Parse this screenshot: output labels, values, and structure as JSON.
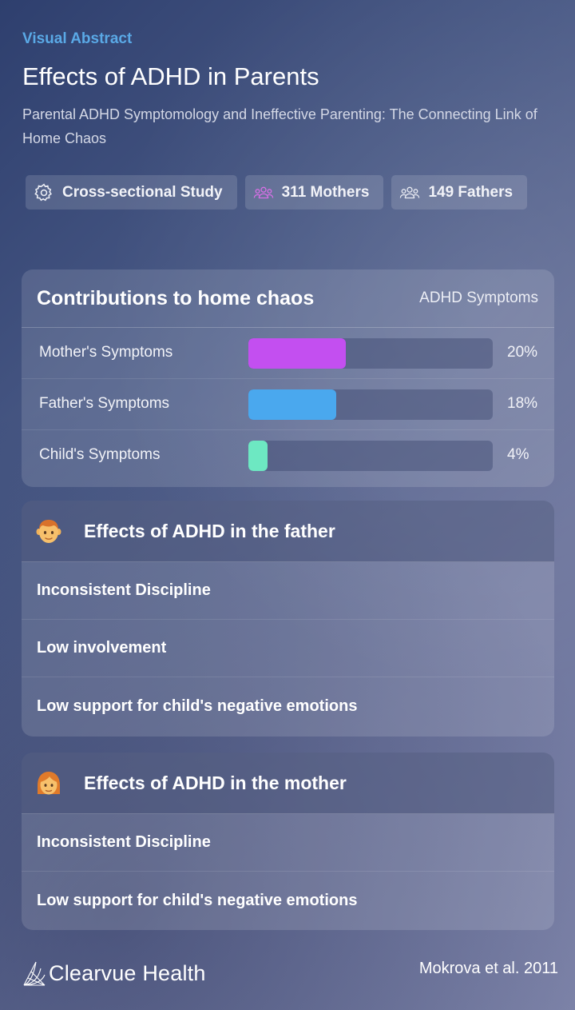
{
  "header": {
    "eyebrow": "Visual Abstract",
    "title": "Effects of ADHD in Parents",
    "subtitle": "Parental ADHD Symptomology and Ineffective Parenting: The Connecting Link of Home Chaos"
  },
  "chips": [
    {
      "label": "Cross-sectional Study",
      "icon": "gear-icon"
    },
    {
      "label": "311 Mothers",
      "icon": "group-icon"
    },
    {
      "label": "149 Fathers",
      "icon": "group-icon"
    }
  ],
  "chart": {
    "title": "Contributions to home chaos",
    "tag": "ADHD Symptoms"
  },
  "chart_data": {
    "type": "bar",
    "title": "Contributions to home chaos",
    "categories": [
      "Mother's Symptoms",
      "Father's Symptoms",
      "Child's Symptoms"
    ],
    "values": [
      20,
      18,
      4
    ],
    "value_labels": [
      "20%",
      "18%",
      "4%"
    ],
    "colors": [
      "#c34ff0",
      "#4aa8ee",
      "#6de8c2"
    ],
    "xlim": [
      0,
      50
    ],
    "orientation": "horizontal"
  },
  "father_effects": {
    "title": "Effects of ADHD in the father",
    "icon": "man-face-icon",
    "items": [
      "Inconsistent Discipline",
      "Low involvement",
      "Low support for child's negative emotions"
    ]
  },
  "mother_effects": {
    "title": "Effects of ADHD in the mother",
    "icon": "woman-face-icon",
    "items": [
      "Inconsistent Discipline",
      "Low support for child's negative emotions"
    ]
  },
  "footer": {
    "brand": "Clearvue Health",
    "citation": "Mokrova et al. 2011"
  }
}
